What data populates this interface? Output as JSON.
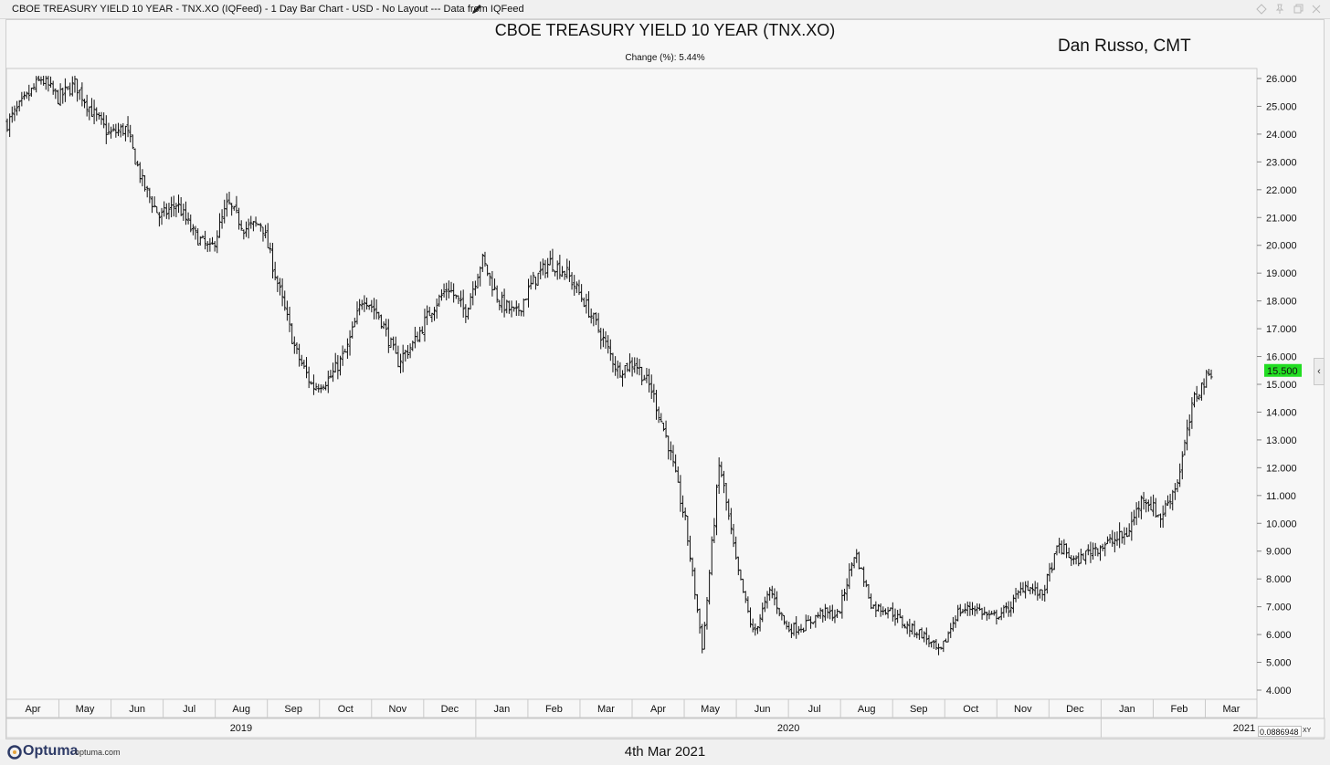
{
  "window": {
    "title": "CBOE TREASURY YIELD 10 YEAR - TNX.XO (IQFeed) - 1 Day Bar Chart - USD - No Layout --- Data from IQFeed"
  },
  "header": {
    "title": "CBOE TREASURY YIELD 10 YEAR (TNX.XO)",
    "change": "Change (%): 5.44%",
    "author": "Dan Russo, CMT"
  },
  "footer": {
    "logo": "Optuma",
    "url": "optuma.com",
    "date": "4th Mar 2021",
    "scale_value": "0.0886948",
    "scale_mode": "XY"
  },
  "icons": {
    "edit": "pencil-icon",
    "side_tab": "collapse-arrow-icon",
    "side_tab_glyph": "‹"
  },
  "colors": {
    "last_price_badge": "#22dd22",
    "bars": "#111111"
  },
  "chart_data": {
    "type": "ohlc-bar",
    "title": "CBOE TREASURY YIELD 10 YEAR (TNX.XO)",
    "ylim": [
      4.0,
      26.0
    ],
    "y_ticks": [
      "26.000",
      "25.000",
      "24.000",
      "23.000",
      "22.000",
      "21.000",
      "20.000",
      "19.000",
      "18.000",
      "17.000",
      "16.000",
      "15.000",
      "14.000",
      "13.000",
      "12.000",
      "11.000",
      "10.000",
      "9.000",
      "8.000",
      "7.000",
      "6.000",
      "5.000",
      "4.000"
    ],
    "last_value": "15.500",
    "x_months": [
      "Apr",
      "May",
      "Jun",
      "Jul",
      "Aug",
      "Sep",
      "Oct",
      "Nov",
      "Dec",
      "Jan",
      "Feb",
      "Mar",
      "Apr",
      "May",
      "Jun",
      "Jul",
      "Aug",
      "Sep",
      "Oct",
      "Nov",
      "Dec",
      "Jan",
      "Feb",
      "Mar"
    ],
    "x_years": [
      "2019",
      "2020",
      "2021"
    ],
    "close_series": [
      24.4,
      25.2,
      26.0,
      25.3,
      25.8,
      24.8,
      24.0,
      24.2,
      22.2,
      21.0,
      21.5,
      20.4,
      19.8,
      21.5,
      20.6,
      20.8,
      18.5,
      16.2,
      14.9,
      15.2,
      16.2,
      18.2,
      17.4,
      15.8,
      16.5,
      17.7,
      18.5,
      17.6,
      19.5,
      18.0,
      17.5,
      18.7,
      19.4,
      19.0,
      18.0,
      16.8,
      15.5,
      15.8,
      14.8,
      12.8,
      10.0,
      5.5,
      12.2,
      8.5,
      6.0,
      7.6,
      6.2,
      6.3,
      6.8,
      6.7,
      9.0,
      7.0,
      6.9,
      6.3,
      6.0,
      5.3,
      6.8,
      7.0,
      6.6,
      6.9,
      7.8,
      7.4,
      9.2,
      8.6,
      9.1,
      9.3,
      9.6,
      11.0,
      10.2,
      11.5,
      14.5,
      15.5
    ]
  }
}
